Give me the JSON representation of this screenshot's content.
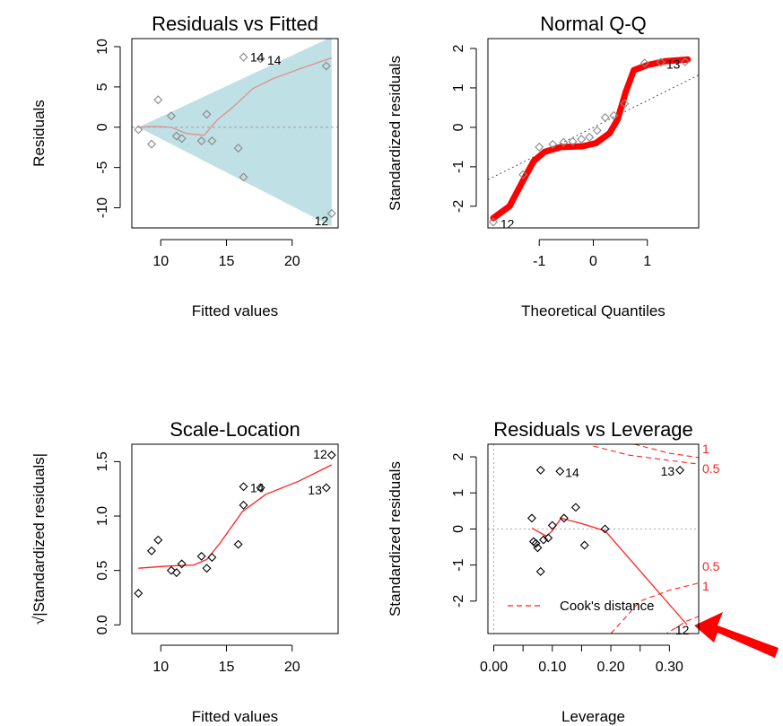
{
  "chart_data": [
    {
      "type": "scatter",
      "title": "Residuals vs Fitted",
      "xlabel": "Fitted values",
      "ylabel": "Residuals",
      "xlim": [
        7.8,
        23.5
      ],
      "ylim": [
        -12.5,
        11
      ],
      "xticks": [
        "10",
        "15",
        "20"
      ],
      "yticks": [
        "-10",
        "-5",
        "0",
        "5",
        "10"
      ],
      "points": [
        {
          "x": 8.3,
          "y": -0.3
        },
        {
          "x": 9.3,
          "y": -2.1
        },
        {
          "x": 9.8,
          "y": 3.4
        },
        {
          "x": 10.8,
          "y": 1.4
        },
        {
          "x": 11.2,
          "y": -1.1
        },
        {
          "x": 11.6,
          "y": -1.4
        },
        {
          "x": 13.1,
          "y": -1.7
        },
        {
          "x": 13.5,
          "y": 1.6
        },
        {
          "x": 13.9,
          "y": -1.7
        },
        {
          "x": 15.9,
          "y": -2.6
        },
        {
          "x": 16.3,
          "y": -6.2
        },
        {
          "x": 16.3,
          "y": 8.7
        },
        {
          "x": 17.6,
          "y": 8.5
        },
        {
          "x": 22.6,
          "y": 7.6
        },
        {
          "x": 23.0,
          "y": -10.7
        }
      ],
      "point_labels": [
        {
          "text": "14",
          "x": 16.8,
          "y": 8.7
        },
        {
          "text": "14",
          "x": 18.1,
          "y": 8.3
        },
        {
          "text": "12",
          "x": 21.7,
          "y": -11.6
        }
      ],
      "smooth": [
        {
          "x": 8.3,
          "y": 0.0
        },
        {
          "x": 9.5,
          "y": 0.1
        },
        {
          "x": 10.8,
          "y": 0.0
        },
        {
          "x": 12.0,
          "y": -0.8
        },
        {
          "x": 13.3,
          "y": -1.0
        },
        {
          "x": 14.3,
          "y": 0.9
        },
        {
          "x": 15.5,
          "y": 2.5
        },
        {
          "x": 17.0,
          "y": 4.8
        },
        {
          "x": 18.5,
          "y": 6.0
        },
        {
          "x": 20.5,
          "y": 7.2
        },
        {
          "x": 23.0,
          "y": 8.6
        }
      ],
      "band": {
        "x0": 8.3,
        "x1": 23.0,
        "upper_end": 11.2,
        "lower_end": -12.3
      },
      "colors": {
        "band": "#bfe0e4",
        "smooth": "#e08a8a",
        "ref": "#a0a0a0",
        "point": "#888888"
      }
    },
    {
      "type": "scatter",
      "title": "Normal Q-Q",
      "xlabel": "Theoretical Quantiles",
      "ylabel": "Standardized residuals",
      "xlim": [
        -1.95,
        1.95
      ],
      "ylim": [
        -2.55,
        2.25
      ],
      "xticks": [
        "-1",
        "0",
        "1"
      ],
      "yticks": [
        "-2",
        "-1",
        "0",
        "1",
        "2"
      ],
      "points": [
        {
          "x": -1.85,
          "y": -2.4
        },
        {
          "x": -1.3,
          "y": -1.2
        },
        {
          "x": -1.0,
          "y": -0.5
        },
        {
          "x": -0.75,
          "y": -0.43
        },
        {
          "x": -0.55,
          "y": -0.38
        },
        {
          "x": -0.38,
          "y": -0.36
        },
        {
          "x": -0.22,
          "y": -0.3
        },
        {
          "x": -0.07,
          "y": -0.25
        },
        {
          "x": 0.07,
          "y": -0.08
        },
        {
          "x": 0.22,
          "y": 0.25
        },
        {
          "x": 0.38,
          "y": 0.3
        },
        {
          "x": 0.58,
          "y": 0.6
        },
        {
          "x": 0.95,
          "y": 1.63
        },
        {
          "x": 1.25,
          "y": 1.65
        },
        {
          "x": 1.7,
          "y": 1.66
        }
      ],
      "point_labels": [
        {
          "text": "12",
          "x": -1.72,
          "y": -2.45
        },
        {
          "text": "13",
          "x": 1.35,
          "y": 1.6
        }
      ],
      "qq_line": {
        "slope": 0.68,
        "intercept": 0.0
      },
      "highlight_curve": [
        {
          "x": -1.85,
          "y": -2.3
        },
        {
          "x": -1.55,
          "y": -2.0
        },
        {
          "x": -1.3,
          "y": -1.35
        },
        {
          "x": -1.1,
          "y": -0.85
        },
        {
          "x": -0.9,
          "y": -0.62
        },
        {
          "x": -0.6,
          "y": -0.5
        },
        {
          "x": -0.2,
          "y": -0.48
        },
        {
          "x": 0.05,
          "y": -0.4
        },
        {
          "x": 0.3,
          "y": -0.15
        },
        {
          "x": 0.45,
          "y": 0.2
        },
        {
          "x": 0.6,
          "y": 0.9
        },
        {
          "x": 0.75,
          "y": 1.45
        },
        {
          "x": 1.0,
          "y": 1.58
        },
        {
          "x": 1.35,
          "y": 1.68
        },
        {
          "x": 1.75,
          "y": 1.72
        }
      ],
      "colors": {
        "highlight": "#ff0000",
        "qq_line": "#555555",
        "point": "#888888"
      }
    },
    {
      "type": "scatter",
      "title": "Scale-Location",
      "xlabel": "Fitted values",
      "ylabel": "√|Standardized residuals|",
      "xlim": [
        7.8,
        23.5
      ],
      "ylim": [
        -0.08,
        1.66
      ],
      "xticks": [
        "10",
        "15",
        "20"
      ],
      "yticks": [
        "0.0",
        "0.5",
        "1.0",
        "1.5"
      ],
      "points": [
        {
          "x": 8.3,
          "y": 0.29
        },
        {
          "x": 9.3,
          "y": 0.68
        },
        {
          "x": 9.8,
          "y": 0.78
        },
        {
          "x": 10.8,
          "y": 0.5
        },
        {
          "x": 11.2,
          "y": 0.48
        },
        {
          "x": 11.6,
          "y": 0.56
        },
        {
          "x": 13.1,
          "y": 0.63
        },
        {
          "x": 13.5,
          "y": 0.52
        },
        {
          "x": 13.9,
          "y": 0.62
        },
        {
          "x": 15.9,
          "y": 0.74
        },
        {
          "x": 16.3,
          "y": 1.27
        },
        {
          "x": 16.3,
          "y": 1.1
        },
        {
          "x": 17.6,
          "y": 1.26
        },
        {
          "x": 22.6,
          "y": 1.26
        },
        {
          "x": 23.0,
          "y": 1.56
        }
      ],
      "point_labels": [
        {
          "text": "14",
          "x": 16.8,
          "y": 1.26
        },
        {
          "text": "12",
          "x": 21.6,
          "y": 1.57
        },
        {
          "text": "13",
          "x": 21.2,
          "y": 1.24
        }
      ],
      "smooth": [
        {
          "x": 8.3,
          "y": 0.52
        },
        {
          "x": 10.5,
          "y": 0.54
        },
        {
          "x": 12.5,
          "y": 0.55
        },
        {
          "x": 13.5,
          "y": 0.6
        },
        {
          "x": 14.5,
          "y": 0.75
        },
        {
          "x": 16.2,
          "y": 1.04
        },
        {
          "x": 18.0,
          "y": 1.2
        },
        {
          "x": 20.5,
          "y": 1.32
        },
        {
          "x": 23.0,
          "y": 1.47
        }
      ],
      "colors": {
        "smooth": "#ff2020",
        "point": "#000000"
      }
    },
    {
      "type": "scatter",
      "title": "Residuals vs Leverage",
      "xlabel": "Leverage",
      "ylabel": "Standardized residuals",
      "xlim": [
        -0.01,
        0.35
      ],
      "ylim": [
        -2.9,
        2.35
      ],
      "xticks": [
        "0.00",
        "0.10",
        "0.20",
        "0.30"
      ],
      "yticks": [
        "-2",
        "-1",
        "0",
        "1",
        "2"
      ],
      "points": [
        {
          "x": 0.065,
          "y": 0.3
        },
        {
          "x": 0.068,
          "y": -0.35
        },
        {
          "x": 0.072,
          "y": -0.4
        },
        {
          "x": 0.075,
          "y": -0.52
        },
        {
          "x": 0.08,
          "y": -1.18
        },
        {
          "x": 0.085,
          "y": -0.3
        },
        {
          "x": 0.093,
          "y": -0.25
        },
        {
          "x": 0.1,
          "y": 0.1
        },
        {
          "x": 0.12,
          "y": 0.3
        },
        {
          "x": 0.14,
          "y": 0.6
        },
        {
          "x": 0.155,
          "y": -0.45
        },
        {
          "x": 0.19,
          "y": 0.0
        },
        {
          "x": 0.08,
          "y": 1.63
        },
        {
          "x": 0.113,
          "y": 1.6
        },
        {
          "x": 0.318,
          "y": 1.63
        }
      ],
      "point_labels": [
        {
          "text": "14",
          "x": 0.122,
          "y": 1.57
        },
        {
          "text": "13",
          "x": 0.285,
          "y": 1.6
        },
        {
          "text": "12",
          "x": 0.31,
          "y": -2.8
        }
      ],
      "smooth": [
        {
          "x": 0.065,
          "y": 0.02
        },
        {
          "x": 0.09,
          "y": -0.2
        },
        {
          "x": 0.1,
          "y": -0.05
        },
        {
          "x": 0.115,
          "y": 0.3
        },
        {
          "x": 0.15,
          "y": 0.15
        },
        {
          "x": 0.19,
          "y": -0.05
        },
        {
          "x": 0.33,
          "y": -2.65
        }
      ],
      "cooks_levels": [
        "1",
        "0.5",
        "0.5",
        "1"
      ],
      "legend": "Cook's distance",
      "colors": {
        "smooth": "#ff2020",
        "cooks": "#ff2020",
        "point": "#000000",
        "arrow": "#ff0000"
      }
    }
  ]
}
